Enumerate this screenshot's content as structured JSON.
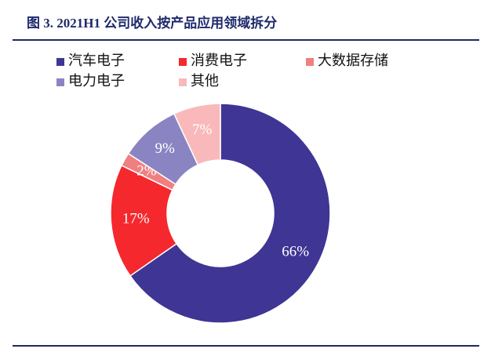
{
  "chart_data": {
    "type": "donut",
    "title": "图 3. 2021H1 公司收入按产品应用领域拆分",
    "categories": [
      "汽车电子",
      "消费电子",
      "大数据存储",
      "电力电子",
      "其他"
    ],
    "values": [
      66,
      17,
      2,
      9,
      7
    ],
    "value_labels": [
      "66%",
      "17%",
      "2%",
      "9%",
      "7%"
    ],
    "colors": [
      "#3f3594",
      "#f5282e",
      "#f07f80",
      "#8b84c2",
      "#f9b9ba"
    ]
  }
}
